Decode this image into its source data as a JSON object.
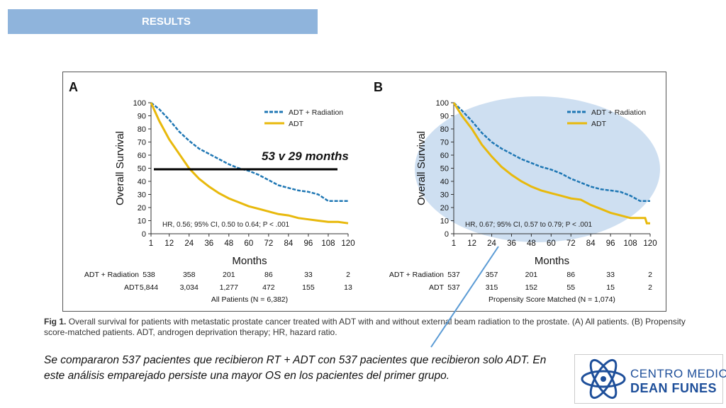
{
  "header": {
    "results_label": "RESULTS"
  },
  "annotation": {
    "median_text": "53 v 29 months"
  },
  "caption": {
    "fig_label": "Fig 1.",
    "text": "Overall survival for patients with metastatic prostate cancer treated with ADT with and without external beam radiation to the prostate. (A) All patients. (B) Propensity score-matched patients. ADT, androgen deprivation therapy; HR, hazard ratio."
  },
  "note": "Se compararon 537 pacientes que recibieron RT + ADT con 537 pacientes que recibieron solo ADT. En este análisis emparejado persiste una mayor OS en los pacientes del primer grupo.",
  "logo": {
    "line1": "CENTRO MEDICO",
    "line2": "DEAN FUNES"
  },
  "colors": {
    "radiation": "#1f77b4",
    "adt": "#e8b90c",
    "highlight": "#c2d7ee",
    "line": "#000000"
  },
  "chart_data": [
    {
      "panel": "A",
      "type": "line",
      "xlabel": "Months",
      "ylabel": "Overall Survival",
      "xticks": [
        1,
        12,
        24,
        36,
        48,
        60,
        72,
        84,
        96,
        108,
        120
      ],
      "yticks": [
        0,
        10,
        20,
        30,
        40,
        50,
        60,
        70,
        80,
        90,
        100
      ],
      "xlim": [
        1,
        120
      ],
      "ylim": [
        0,
        100
      ],
      "hr_text": "HR, 0.56; 95% CI, 0.50 to 0.64; P < .001",
      "legend": [
        "ADT + Radiation",
        "ADT"
      ],
      "series": [
        {
          "name": "ADT + Radiation",
          "x": [
            1,
            6,
            12,
            18,
            24,
            30,
            36,
            42,
            48,
            54,
            60,
            66,
            72,
            78,
            84,
            90,
            96,
            102,
            108,
            114,
            120
          ],
          "y": [
            100,
            95,
            87,
            78,
            71,
            65,
            61,
            57,
            53,
            50,
            48,
            45,
            41,
            37,
            35,
            33,
            32,
            30,
            25,
            25,
            25
          ]
        },
        {
          "name": "ADT",
          "x": [
            1,
            6,
            12,
            18,
            24,
            30,
            36,
            42,
            48,
            54,
            60,
            66,
            72,
            78,
            84,
            90,
            96,
            102,
            108,
            114,
            120
          ],
          "y": [
            100,
            86,
            72,
            61,
            50,
            42,
            36,
            31,
            27,
            24,
            21,
            19,
            17,
            15,
            14,
            12,
            11,
            10,
            9,
            9,
            8
          ]
        }
      ],
      "risk_table": {
        "rows": [
          {
            "label": "ADT + Radiation",
            "values": [
              "538",
              "358",
              "201",
              "86",
              "33",
              "2"
            ]
          },
          {
            "label": "ADT",
            "values": [
              "5,844",
              "3,034",
              "1,277",
              "472",
              "155",
              "13"
            ]
          }
        ],
        "footer": "All Patients (N = 6,382)"
      }
    },
    {
      "panel": "B",
      "type": "line",
      "xlabel": "Months",
      "ylabel": "Overall Survival",
      "xticks": [
        1,
        12,
        24,
        36,
        48,
        60,
        72,
        84,
        96,
        108,
        120
      ],
      "yticks": [
        0,
        10,
        20,
        30,
        40,
        50,
        60,
        70,
        80,
        90,
        100
      ],
      "xlim": [
        1,
        120
      ],
      "ylim": [
        0,
        100
      ],
      "hr_text": "HR, 0.67; 95% CI, 0.57 to 0.79; P < .001",
      "legend": [
        "ADT + Radiation",
        "ADT"
      ],
      "series": [
        {
          "name": "ADT + Radiation",
          "x": [
            1,
            6,
            12,
            18,
            24,
            30,
            36,
            42,
            48,
            54,
            60,
            66,
            72,
            78,
            84,
            90,
            96,
            102,
            108,
            114,
            120
          ],
          "y": [
            100,
            94,
            86,
            77,
            70,
            65,
            61,
            57,
            54,
            51,
            49,
            46,
            42,
            39,
            36,
            34,
            33,
            32,
            29,
            25,
            25
          ]
        },
        {
          "name": "ADT",
          "x": [
            1,
            6,
            12,
            18,
            24,
            30,
            36,
            42,
            48,
            54,
            60,
            66,
            72,
            78,
            84,
            90,
            96,
            102,
            108,
            114,
            117,
            118,
            120
          ],
          "y": [
            100,
            90,
            80,
            68,
            59,
            51,
            45,
            40,
            36,
            33,
            31,
            29,
            27,
            26,
            22,
            19,
            16,
            14,
            12,
            12,
            12,
            8,
            8
          ]
        }
      ],
      "risk_table": {
        "rows": [
          {
            "label": "ADT + Radiation",
            "values": [
              "537",
              "357",
              "201",
              "86",
              "33",
              "2"
            ]
          },
          {
            "label": "ADT",
            "values": [
              "537",
              "315",
              "152",
              "55",
              "15",
              "2"
            ]
          }
        ],
        "footer": "Propensity Score Matched (N = 1,074)"
      }
    }
  ]
}
